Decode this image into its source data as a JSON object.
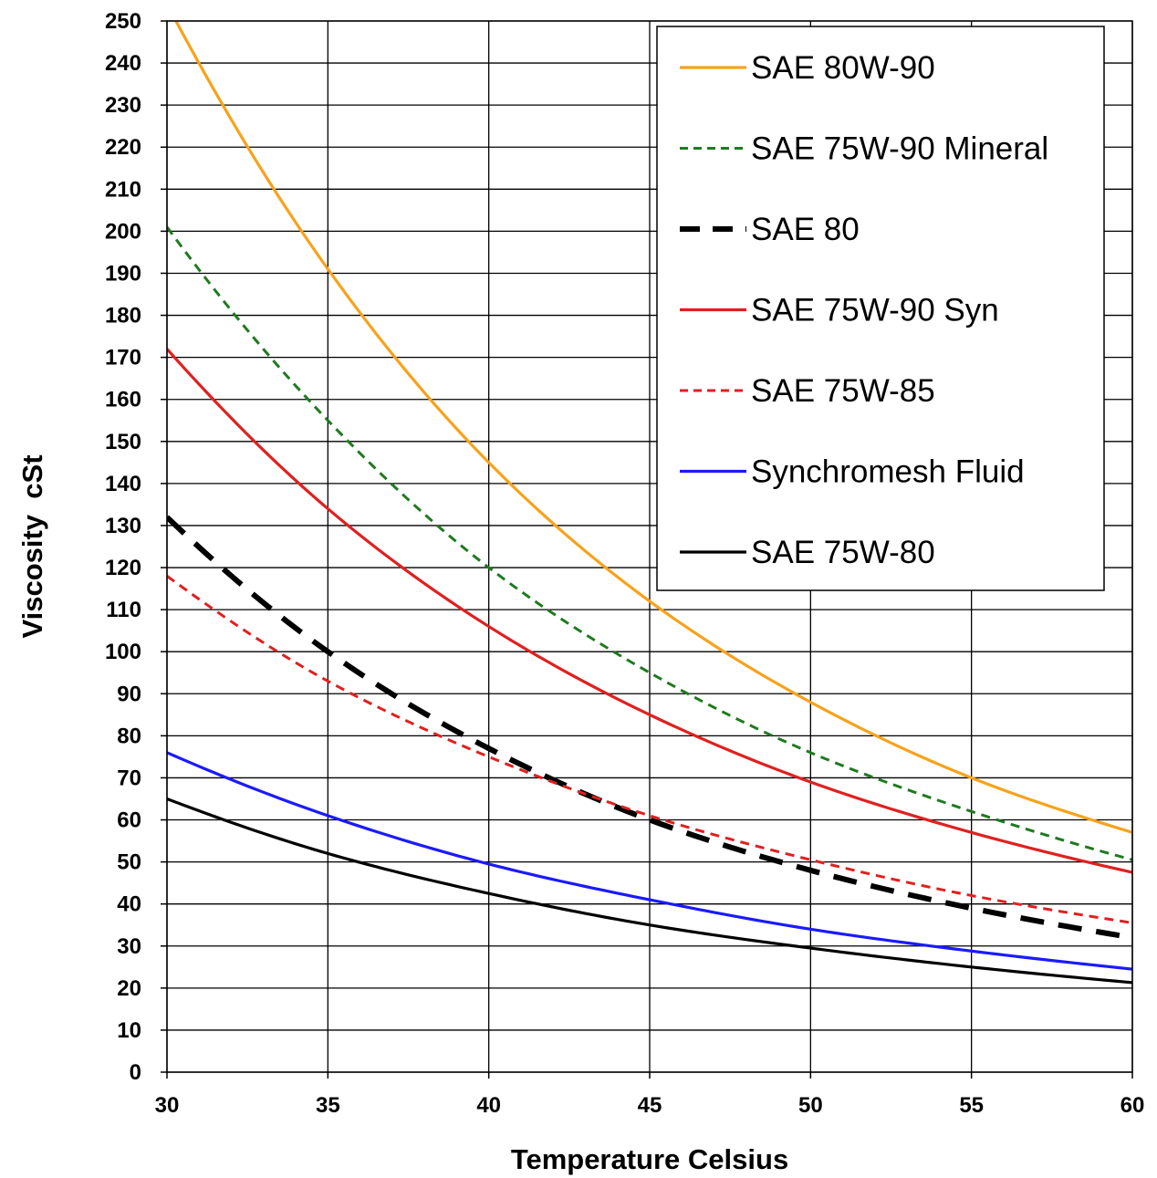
{
  "chart_data": {
    "type": "line",
    "title": "",
    "xlabel": "Temperature Celsius",
    "ylabel": "Viscosity  cSt",
    "xlim": [
      30,
      60
    ],
    "ylim": [
      0,
      250
    ],
    "x_ticks": [
      30,
      35,
      40,
      45,
      50,
      55,
      60
    ],
    "y_ticks": [
      0,
      10,
      20,
      30,
      40,
      50,
      60,
      70,
      80,
      90,
      100,
      110,
      120,
      130,
      140,
      150,
      160,
      170,
      180,
      190,
      200,
      210,
      220,
      230,
      240,
      250
    ],
    "grid": true,
    "legend_position": "top-right",
    "x": [
      30,
      35,
      40,
      45,
      50,
      55,
      60
    ],
    "series": [
      {
        "name": "SAE 80W-90",
        "color": "#f7a21b",
        "dash": "solid",
        "values": [
          254,
          191,
          145,
          112,
          88,
          70,
          57
        ]
      },
      {
        "name": "SAE 75W-90 Mineral",
        "color": "#1f7a1f",
        "dash": "dotted",
        "values": [
          201,
          155,
          120,
          95,
          76,
          62,
          50.5
        ]
      },
      {
        "name": "SAE 80",
        "color": "#000000",
        "dash": "dashed-bold",
        "values": [
          132,
          100,
          77,
          60,
          48,
          39,
          32
        ]
      },
      {
        "name": "SAE 75W-90 Syn",
        "color": "#e0201f",
        "dash": "solid",
        "values": [
          172,
          134,
          106,
          85,
          69,
          57,
          47.5
        ]
      },
      {
        "name": "SAE 75W-85",
        "color": "#e0201f",
        "dash": "dotted",
        "values": [
          118,
          93,
          75,
          61,
          50.5,
          42,
          35.5
        ]
      },
      {
        "name": "Synchromesh Fluid",
        "color": "#1a1aff",
        "dash": "solid",
        "values": [
          76,
          61,
          49.5,
          41,
          34,
          28.8,
          24.5
        ]
      },
      {
        "name": "SAE 75W-80",
        "color": "#000000",
        "dash": "solid",
        "values": [
          65,
          52,
          42.5,
          35,
          29.5,
          25,
          21.3
        ]
      }
    ]
  }
}
